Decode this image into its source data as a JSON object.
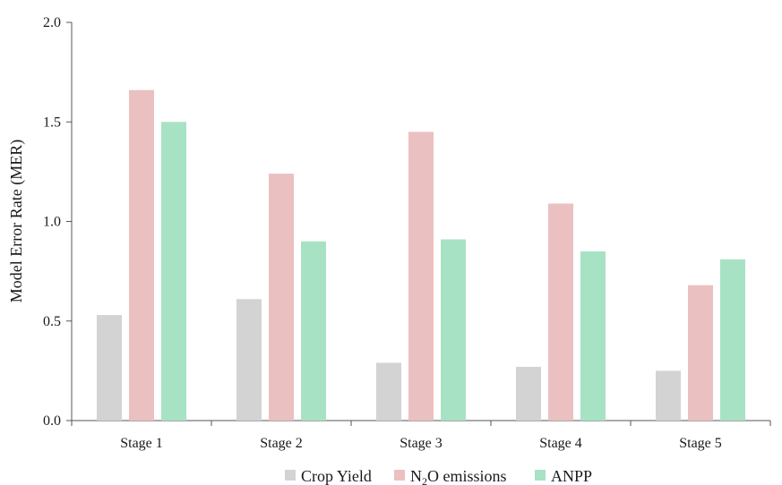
{
  "chart_data": {
    "type": "bar",
    "categories": [
      "Stage 1",
      "Stage 2",
      "Stage 3",
      "Stage 4",
      "Stage 5"
    ],
    "series": [
      {
        "name": "Crop Yield",
        "values": [
          0.53,
          0.61,
          0.29,
          0.27,
          0.25
        ]
      },
      {
        "name": "N2O emissions",
        "values": [
          1.66,
          1.24,
          1.45,
          1.09,
          0.68
        ]
      },
      {
        "name": "ANPP",
        "values": [
          1.5,
          0.9,
          0.91,
          0.85,
          0.81
        ]
      }
    ],
    "colors": [
      "#d3d3d3",
      "#ebc0c0",
      "#a8e2c4"
    ],
    "title": "",
    "xlabel": "",
    "ylabel": "Model Error Rate (MER)",
    "ylim": [
      0,
      2.0
    ],
    "yticks": [
      "0.0",
      "0.5",
      "1.0",
      "1.5",
      "2.0"
    ],
    "grid": false,
    "legend_position": "bottom-center",
    "legend": {
      "crop": "Crop Yield",
      "n2o_prefix": "N",
      "n2o_sub": "2",
      "n2o_suffix": "O emissions",
      "anpp": "ANPP"
    }
  }
}
